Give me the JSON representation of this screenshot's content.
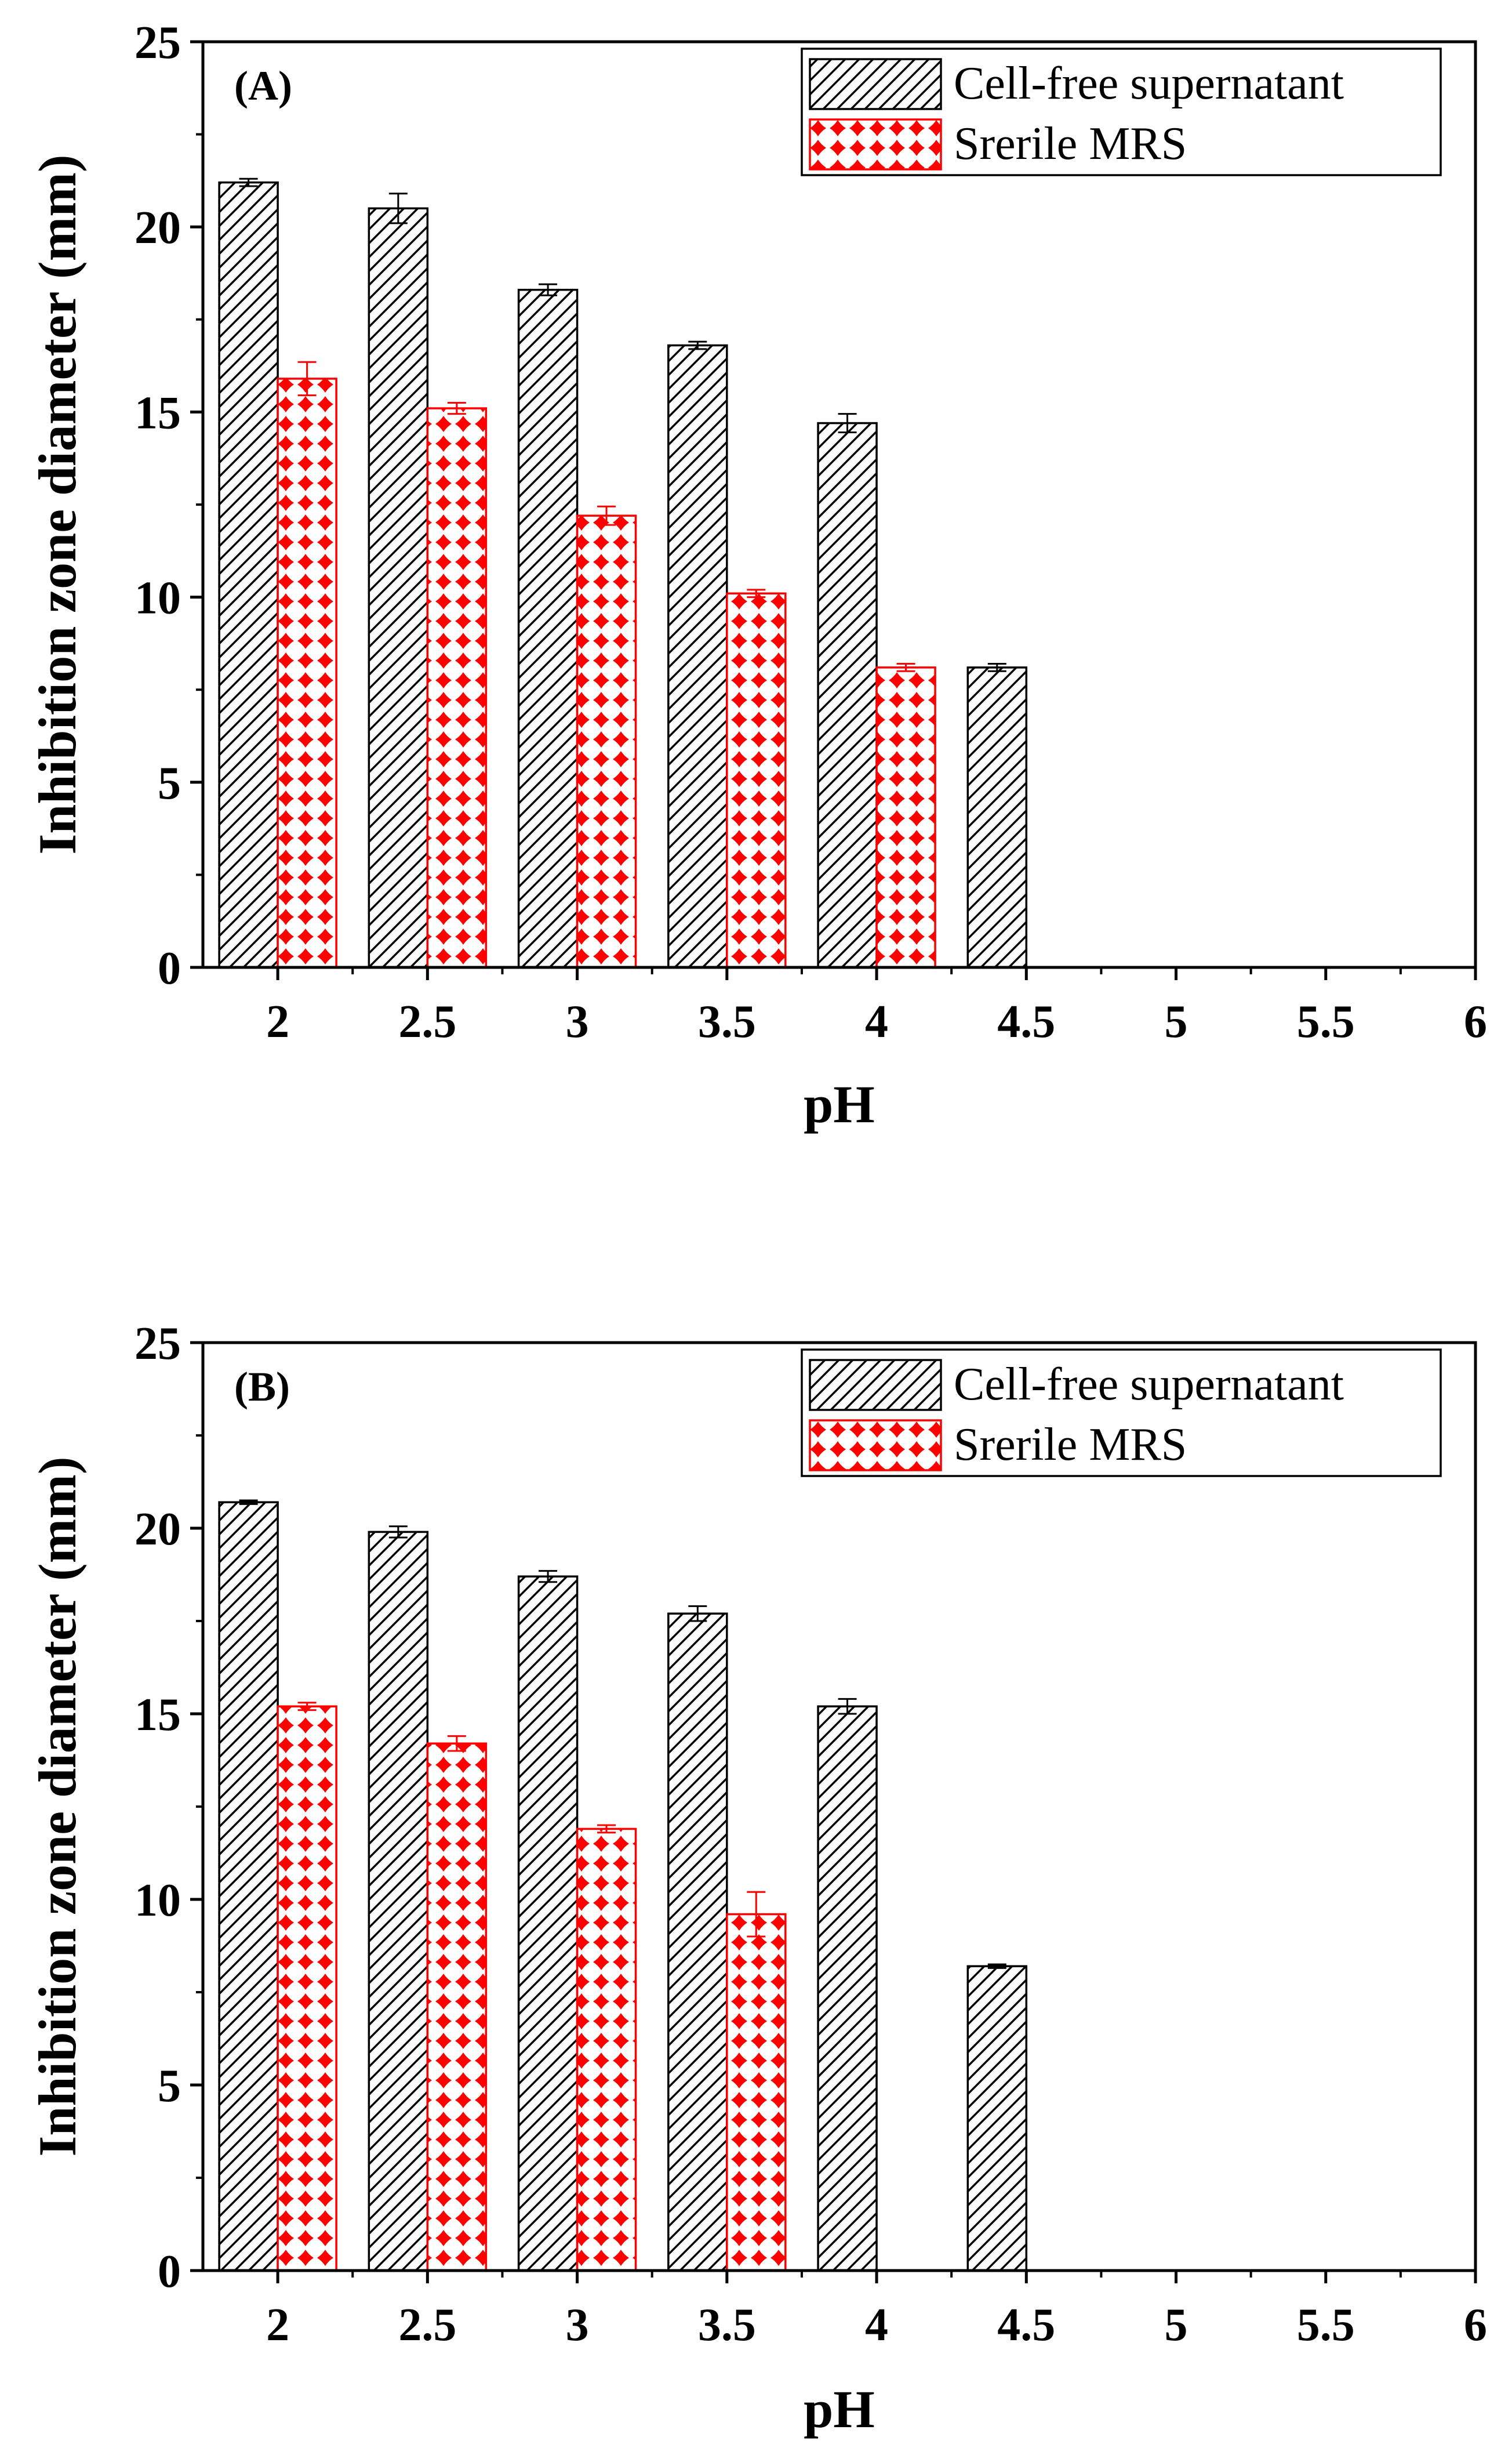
{
  "chart_data": [
    {
      "type": "bar",
      "panel_label": "(A)",
      "xlabel": "pH",
      "ylabel": "Inhibition zone diameter (mm)",
      "ylim": [
        0,
        25
      ],
      "y_ticks": [
        "0",
        "5",
        "10",
        "15",
        "20",
        "25"
      ],
      "x_ticks": [
        "2",
        "2.5",
        "3",
        "3.5",
        "4",
        "4.5",
        "5",
        "5.5",
        "6"
      ],
      "xlim": [
        1.75,
        6
      ],
      "legend_position": "top-right",
      "colors": {
        "series_1": "#000000",
        "series_2": "#ff0000"
      },
      "series": [
        {
          "name": "Cell-free supernatant",
          "x": [
            2,
            2.5,
            3,
            3.5,
            4,
            4.5
          ],
          "values": [
            21.2,
            20.5,
            18.3,
            16.8,
            14.7,
            8.1
          ],
          "errors": [
            0.1,
            0.4,
            0.15,
            0.1,
            0.25,
            0.1
          ]
        },
        {
          "name": "Srerile MRS",
          "x": [
            2,
            2.5,
            3,
            3.5,
            4
          ],
          "values": [
            15.9,
            15.1,
            12.2,
            10.1,
            8.1
          ],
          "errors": [
            0.45,
            0.15,
            0.25,
            0.1,
            0.1
          ]
        }
      ]
    },
    {
      "type": "bar",
      "panel_label": "(B)",
      "xlabel": "pH",
      "ylabel": "Inhibition zone diameter (mm)",
      "ylim": [
        0,
        25
      ],
      "y_ticks": [
        "0",
        "5",
        "10",
        "15",
        "20",
        "25"
      ],
      "x_ticks": [
        "2",
        "2.5",
        "3",
        "3.5",
        "4",
        "4.5",
        "5",
        "5.5",
        "6"
      ],
      "xlim": [
        1.75,
        6
      ],
      "legend_position": "top-right",
      "colors": {
        "series_1": "#000000",
        "series_2": "#ff0000"
      },
      "series": [
        {
          "name": "Cell-free supernatant",
          "x": [
            2,
            2.5,
            3,
            3.5,
            4,
            4.5
          ],
          "values": [
            20.7,
            19.9,
            18.7,
            17.7,
            15.2,
            8.2
          ],
          "errors": [
            0.05,
            0.15,
            0.15,
            0.2,
            0.2,
            0.05
          ]
        },
        {
          "name": "Srerile MRS",
          "x": [
            2,
            2.5,
            3,
            3.5
          ],
          "values": [
            15.2,
            14.2,
            11.9,
            9.6
          ],
          "errors": [
            0.1,
            0.2,
            0.1,
            0.6
          ]
        }
      ]
    }
  ]
}
